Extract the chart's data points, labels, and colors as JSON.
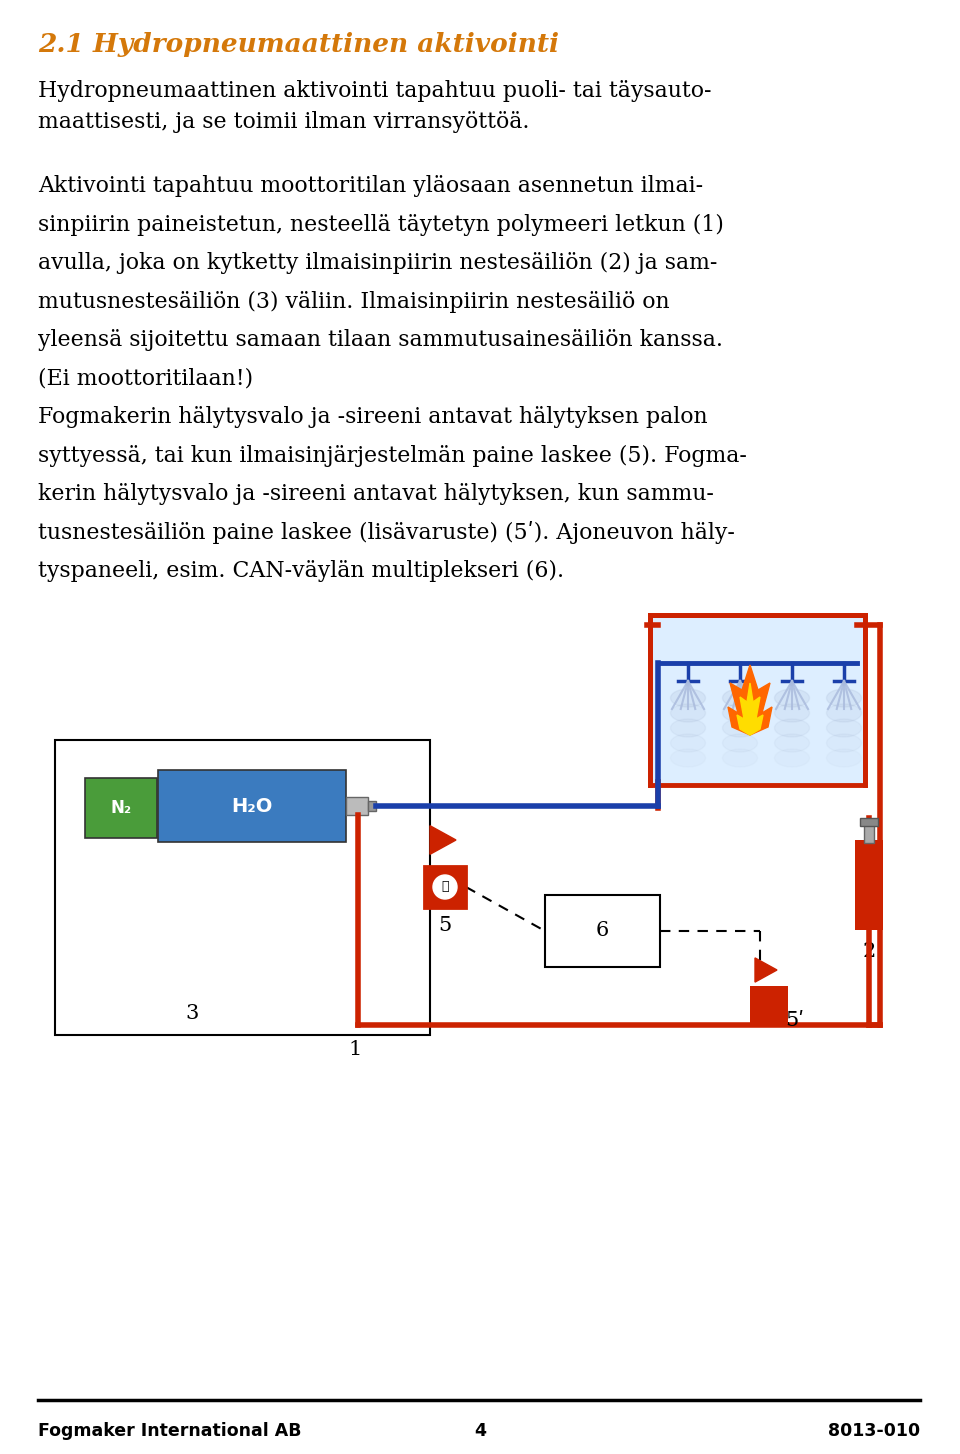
{
  "title": "2.1 Hydropneumaattinen aktivointi",
  "title_color": "#d4780a",
  "body_paragraphs": [
    "Hydropneumaattinen aktivointi tapahtuu puoli- tai täysauto-\nmaattisesti, ja se toimii ilman virransyöttöä.",
    "Aktivointi tapahtuu moottoritilan yläosaan asennetun ilmai-\nsinpiirin paineistetun, nesteellä täytetyn polymeeri letkun (1)\navulla, joka on kytketty ilmaisinpiirin nestesäiliön (2) ja sam-\nmutusnestesäiliön (3) väliin. Ilmaisinpiirin nestesäiliö on\nyleensä sijoitettu samaan tilaan sammutusainesäiliön kanssa.\n(Ei moottoritilaan!)\nFogmakerin hälytysvalo ja -sireeni antavat hälytyksen palon\nsyttyessä, tai kun ilmaisinjärjestelmän paine laskee (5). Fogma-\nkerin hälytysvalo ja -sireeni antavat hälytyksen, kun sammu-\ntusnestesäiliön paine laskee (lisävaruste) (5ʹ). Ajoneuvon häly-\ntyspaneeli, esim. CAN-väylän multiplekseri (6)."
  ],
  "footer_left": "Fogmaker International AB",
  "footer_center": "4",
  "footer_right": "8013-010",
  "bg_color": "#ffffff",
  "text_color": "#000000",
  "n2_color": "#4a9c3a",
  "h2o_color": "#3b7bbf",
  "red_color": "#cc2200",
  "blue_color": "#1a3faa",
  "grey_color": "#999999"
}
